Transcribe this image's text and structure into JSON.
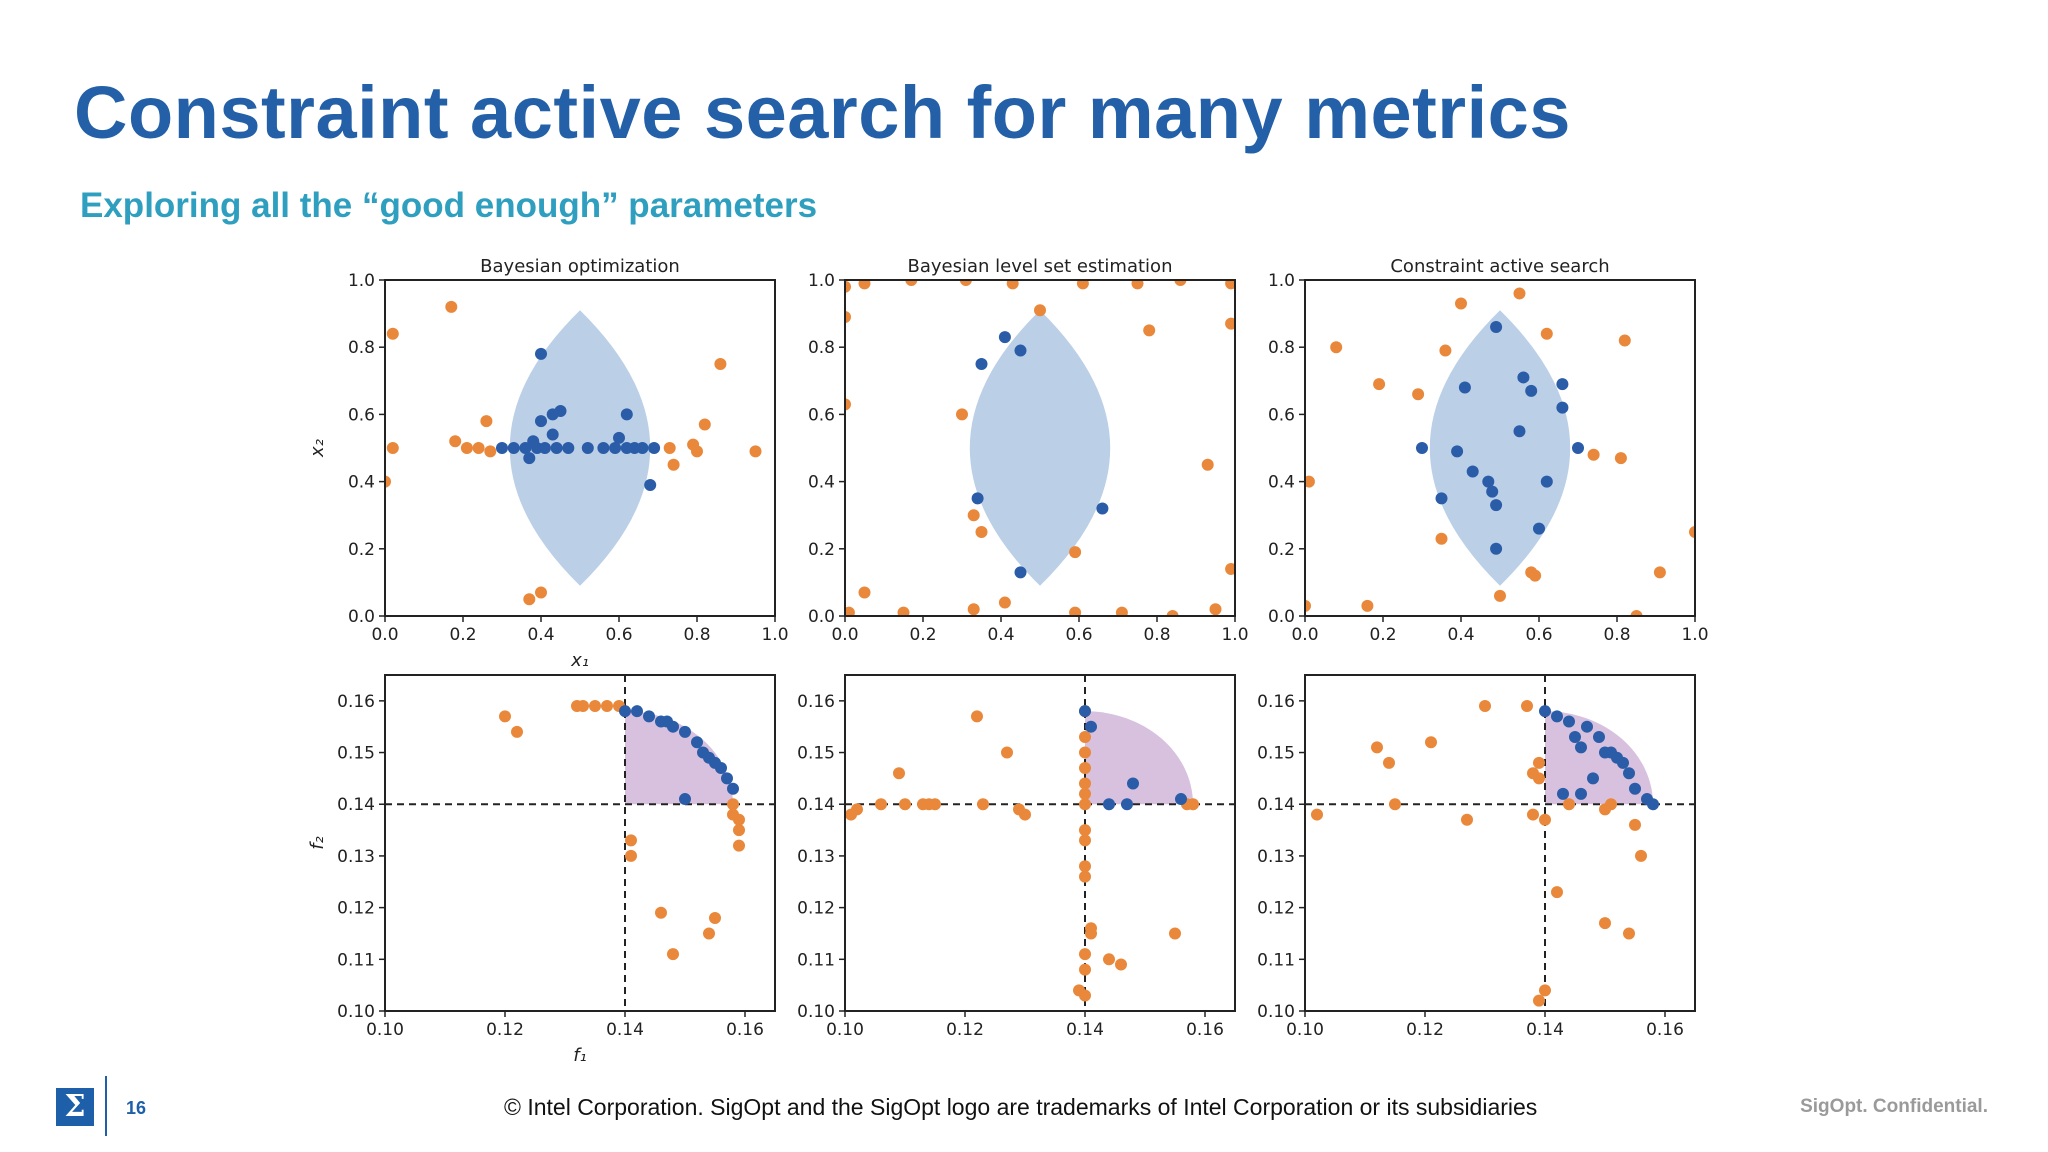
{
  "slide": {
    "title": "Constraint active search for many metrics",
    "subtitle": "Exploring all the “good enough” parameters",
    "page_number": "16",
    "copyright": "© Intel Corporation.  SigOpt and the SigOpt logo are trademarks of Intel Corporation or its subsidiaries",
    "confidential": "SigOpt. Confidential.",
    "logo_glyph": "Σ"
  },
  "colors": {
    "title": "#2360a8",
    "subtitle": "#2f9fc0",
    "blue_points": "#2a5ca8",
    "orange_points": "#e9883a",
    "feasible_region_top": "#b7cce6",
    "feasible_region_bottom": "#d8c1de"
  },
  "chart_data": [
    {
      "type": "scatter",
      "title": "Bayesian optimization",
      "xlabel": "x₁",
      "ylabel": "x₂",
      "xlim": [
        0,
        1
      ],
      "ylim": [
        0,
        1
      ],
      "xticks": [
        "0.0",
        "0.2",
        "0.4",
        "0.6",
        "0.8",
        "1.0"
      ],
      "yticks": [
        "0.0",
        "0.2",
        "0.4",
        "0.6",
        "0.8",
        "1.0"
      ],
      "region": "lens",
      "blue": [
        [
          0.3,
          0.5
        ],
        [
          0.33,
          0.5
        ],
        [
          0.36,
          0.5
        ],
        [
          0.37,
          0.47
        ],
        [
          0.38,
          0.52
        ],
        [
          0.39,
          0.5
        ],
        [
          0.4,
          0.58
        ],
        [
          0.4,
          0.78
        ],
        [
          0.41,
          0.5
        ],
        [
          0.43,
          0.6
        ],
        [
          0.43,
          0.54
        ],
        [
          0.44,
          0.5
        ],
        [
          0.45,
          0.61
        ],
        [
          0.47,
          0.5
        ],
        [
          0.52,
          0.5
        ],
        [
          0.56,
          0.5
        ],
        [
          0.59,
          0.5
        ],
        [
          0.6,
          0.53
        ],
        [
          0.62,
          0.5
        ],
        [
          0.62,
          0.6
        ],
        [
          0.64,
          0.5
        ],
        [
          0.66,
          0.5
        ],
        [
          0.68,
          0.39
        ],
        [
          0.69,
          0.5
        ]
      ],
      "orange": [
        [
          0.02,
          0.84
        ],
        [
          0.02,
          0.5
        ],
        [
          0.17,
          0.92
        ],
        [
          0.18,
          0.52
        ],
        [
          0.21,
          0.5
        ],
        [
          0.24,
          0.5
        ],
        [
          0.26,
          0.58
        ],
        [
          0.27,
          0.49
        ],
        [
          0.37,
          0.05
        ],
        [
          0.4,
          0.07
        ],
        [
          0.73,
          0.5
        ],
        [
          0.74,
          0.45
        ],
        [
          0.79,
          0.51
        ],
        [
          0.8,
          0.49
        ],
        [
          0.82,
          0.57
        ],
        [
          0.86,
          0.75
        ],
        [
          0.95,
          0.49
        ],
        [
          0.0,
          0.4
        ]
      ]
    },
    {
      "type": "scatter",
      "title": "Bayesian level set estimation",
      "xlim": [
        0,
        1
      ],
      "ylim": [
        0,
        1
      ],
      "xticks": [
        "0.0",
        "0.2",
        "0.4",
        "0.6",
        "0.8",
        "1.0"
      ],
      "yticks": [
        "0.0",
        "0.2",
        "0.4",
        "0.6",
        "0.8",
        "1.0"
      ],
      "region": "lens",
      "blue": [
        [
          0.35,
          0.75
        ],
        [
          0.41,
          0.83
        ],
        [
          0.45,
          0.79
        ],
        [
          0.34,
          0.35
        ],
        [
          0.45,
          0.13
        ],
        [
          0.66,
          0.32
        ]
      ],
      "orange": [
        [
          0.0,
          0.89
        ],
        [
          0.05,
          0.99
        ],
        [
          0.17,
          1.0
        ],
        [
          0.31,
          1.0
        ],
        [
          0.43,
          0.99
        ],
        [
          0.5,
          0.91
        ],
        [
          0.61,
          0.99
        ],
        [
          0.75,
          0.99
        ],
        [
          0.86,
          1.0
        ],
        [
          0.99,
          0.99
        ],
        [
          0.0,
          0.98
        ],
        [
          0.0,
          0.63
        ],
        [
          0.3,
          0.6
        ],
        [
          0.33,
          0.3
        ],
        [
          0.35,
          0.25
        ],
        [
          0.59,
          0.19
        ],
        [
          0.78,
          0.85
        ],
        [
          0.93,
          0.45
        ],
        [
          0.99,
          0.87
        ],
        [
          0.99,
          0.14
        ],
        [
          0.05,
          0.07
        ],
        [
          0.15,
          0.01
        ],
        [
          0.33,
          0.02
        ],
        [
          0.41,
          0.04
        ],
        [
          0.59,
          0.01
        ],
        [
          0.71,
          0.01
        ],
        [
          0.84,
          0.0
        ],
        [
          0.95,
          0.02
        ],
        [
          0.01,
          0.01
        ]
      ]
    },
    {
      "type": "scatter",
      "title": "Constraint active search",
      "xlim": [
        0,
        1
      ],
      "ylim": [
        0,
        1
      ],
      "xticks": [
        "0.0",
        "0.2",
        "0.4",
        "0.6",
        "0.8",
        "1.0"
      ],
      "yticks": [
        "0.0",
        "0.2",
        "0.4",
        "0.6",
        "0.8",
        "1.0"
      ],
      "region": "lens",
      "blue": [
        [
          0.3,
          0.5
        ],
        [
          0.35,
          0.35
        ],
        [
          0.39,
          0.49
        ],
        [
          0.41,
          0.68
        ],
        [
          0.43,
          0.43
        ],
        [
          0.47,
          0.4
        ],
        [
          0.48,
          0.37
        ],
        [
          0.49,
          0.86
        ],
        [
          0.49,
          0.33
        ],
        [
          0.49,
          0.2
        ],
        [
          0.55,
          0.55
        ],
        [
          0.56,
          0.71
        ],
        [
          0.58,
          0.67
        ],
        [
          0.6,
          0.26
        ],
        [
          0.62,
          0.4
        ],
        [
          0.66,
          0.69
        ],
        [
          0.66,
          0.62
        ],
        [
          0.7,
          0.5
        ]
      ],
      "orange": [
        [
          0.01,
          0.4
        ],
        [
          0.08,
          0.8
        ],
        [
          0.19,
          0.69
        ],
        [
          0.29,
          0.66
        ],
        [
          0.36,
          0.79
        ],
        [
          0.4,
          0.93
        ],
        [
          0.55,
          0.96
        ],
        [
          0.62,
          0.84
        ],
        [
          0.74,
          0.48
        ],
        [
          0.81,
          0.47
        ],
        [
          0.82,
          0.82
        ],
        [
          0.91,
          0.13
        ],
        [
          1.0,
          0.25
        ],
        [
          0.0,
          0.03
        ],
        [
          0.16,
          0.03
        ],
        [
          0.35,
          0.23
        ],
        [
          0.5,
          0.06
        ],
        [
          0.58,
          0.13
        ],
        [
          0.59,
          0.12
        ],
        [
          0.85,
          0.0
        ]
      ]
    },
    {
      "type": "scatter",
      "xlabel": "f₁",
      "ylabel": "f₂",
      "xlim": [
        0.1,
        0.165
      ],
      "ylim": [
        0.1,
        0.165
      ],
      "xticks": [
        "0.10",
        "0.12",
        "0.14",
        "0.16"
      ],
      "yticks": [
        "0.10",
        "0.11",
        "0.12",
        "0.13",
        "0.14",
        "0.15",
        "0.16"
      ],
      "threshold": [
        0.14,
        0.14
      ],
      "region": "pareto-quarter",
      "blue": [
        [
          0.14,
          0.158
        ],
        [
          0.142,
          0.158
        ],
        [
          0.144,
          0.157
        ],
        [
          0.146,
          0.156
        ],
        [
          0.147,
          0.156
        ],
        [
          0.148,
          0.155
        ],
        [
          0.15,
          0.154
        ],
        [
          0.152,
          0.152
        ],
        [
          0.153,
          0.15
        ],
        [
          0.154,
          0.149
        ],
        [
          0.155,
          0.148
        ],
        [
          0.156,
          0.147
        ],
        [
          0.157,
          0.145
        ],
        [
          0.158,
          0.143
        ],
        [
          0.15,
          0.141
        ]
      ],
      "orange": [
        [
          0.12,
          0.157
        ],
        [
          0.122,
          0.154
        ],
        [
          0.132,
          0.159
        ],
        [
          0.133,
          0.159
        ],
        [
          0.135,
          0.159
        ],
        [
          0.137,
          0.159
        ],
        [
          0.139,
          0.159
        ],
        [
          0.141,
          0.133
        ],
        [
          0.141,
          0.13
        ],
        [
          0.146,
          0.119
        ],
        [
          0.148,
          0.111
        ],
        [
          0.154,
          0.115
        ],
        [
          0.155,
          0.118
        ],
        [
          0.158,
          0.138
        ],
        [
          0.159,
          0.137
        ],
        [
          0.159,
          0.135
        ],
        [
          0.159,
          0.132
        ],
        [
          0.158,
          0.14
        ]
      ]
    },
    {
      "type": "scatter",
      "xlim": [
        0.1,
        0.165
      ],
      "ylim": [
        0.1,
        0.165
      ],
      "xticks": [
        "0.10",
        "0.12",
        "0.14",
        "0.16"
      ],
      "yticks": [
        "0.10",
        "0.11",
        "0.12",
        "0.13",
        "0.14",
        "0.15",
        "0.16"
      ],
      "threshold": [
        0.14,
        0.14
      ],
      "region": "pareto-quarter",
      "blue": [
        [
          0.14,
          0.158
        ],
        [
          0.141,
          0.155
        ],
        [
          0.144,
          0.14
        ],
        [
          0.147,
          0.14
        ],
        [
          0.148,
          0.144
        ],
        [
          0.156,
          0.141
        ]
      ],
      "orange": [
        [
          0.101,
          0.138
        ],
        [
          0.102,
          0.139
        ],
        [
          0.106,
          0.14
        ],
        [
          0.109,
          0.146
        ],
        [
          0.11,
          0.14
        ],
        [
          0.113,
          0.14
        ],
        [
          0.114,
          0.14
        ],
        [
          0.115,
          0.14
        ],
        [
          0.122,
          0.157
        ],
        [
          0.123,
          0.14
        ],
        [
          0.127,
          0.15
        ],
        [
          0.129,
          0.139
        ],
        [
          0.13,
          0.138
        ],
        [
          0.14,
          0.158
        ],
        [
          0.14,
          0.153
        ],
        [
          0.14,
          0.15
        ],
        [
          0.14,
          0.147
        ],
        [
          0.14,
          0.144
        ],
        [
          0.14,
          0.142
        ],
        [
          0.14,
          0.14
        ],
        [
          0.14,
          0.135
        ],
        [
          0.14,
          0.133
        ],
        [
          0.14,
          0.128
        ],
        [
          0.14,
          0.126
        ],
        [
          0.141,
          0.116
        ],
        [
          0.141,
          0.115
        ],
        [
          0.14,
          0.111
        ],
        [
          0.14,
          0.108
        ],
        [
          0.139,
          0.104
        ],
        [
          0.14,
          0.103
        ],
        [
          0.144,
          0.11
        ],
        [
          0.146,
          0.109
        ],
        [
          0.155,
          0.115
        ],
        [
          0.157,
          0.14
        ],
        [
          0.158,
          0.14
        ]
      ]
    },
    {
      "type": "scatter",
      "xlim": [
        0.1,
        0.165
      ],
      "ylim": [
        0.1,
        0.165
      ],
      "xticks": [
        "0.10",
        "0.12",
        "0.14",
        "0.16"
      ],
      "yticks": [
        "0.10",
        "0.11",
        "0.12",
        "0.13",
        "0.14",
        "0.15",
        "0.16"
      ],
      "threshold": [
        0.14,
        0.14
      ],
      "region": "pareto-quarter",
      "blue": [
        [
          0.14,
          0.158
        ],
        [
          0.142,
          0.157
        ],
        [
          0.144,
          0.156
        ],
        [
          0.145,
          0.153
        ],
        [
          0.146,
          0.151
        ],
        [
          0.147,
          0.155
        ],
        [
          0.148,
          0.145
        ],
        [
          0.149,
          0.153
        ],
        [
          0.15,
          0.15
        ],
        [
          0.151,
          0.15
        ],
        [
          0.152,
          0.149
        ],
        [
          0.153,
          0.148
        ],
        [
          0.154,
          0.146
        ],
        [
          0.155,
          0.143
        ],
        [
          0.143,
          0.142
        ],
        [
          0.146,
          0.142
        ],
        [
          0.157,
          0.141
        ],
        [
          0.158,
          0.14
        ]
      ],
      "orange": [
        [
          0.102,
          0.138
        ],
        [
          0.112,
          0.151
        ],
        [
          0.114,
          0.148
        ],
        [
          0.115,
          0.14
        ],
        [
          0.121,
          0.152
        ],
        [
          0.127,
          0.137
        ],
        [
          0.13,
          0.159
        ],
        [
          0.137,
          0.159
        ],
        [
          0.138,
          0.146
        ],
        [
          0.139,
          0.145
        ],
        [
          0.139,
          0.148
        ],
        [
          0.138,
          0.138
        ],
        [
          0.14,
          0.137
        ],
        [
          0.14,
          0.104
        ],
        [
          0.139,
          0.102
        ],
        [
          0.142,
          0.123
        ],
        [
          0.144,
          0.14
        ],
        [
          0.15,
          0.139
        ],
        [
          0.151,
          0.14
        ],
        [
          0.15,
          0.117
        ],
        [
          0.154,
          0.115
        ],
        [
          0.155,
          0.136
        ],
        [
          0.156,
          0.13
        ]
      ]
    }
  ]
}
